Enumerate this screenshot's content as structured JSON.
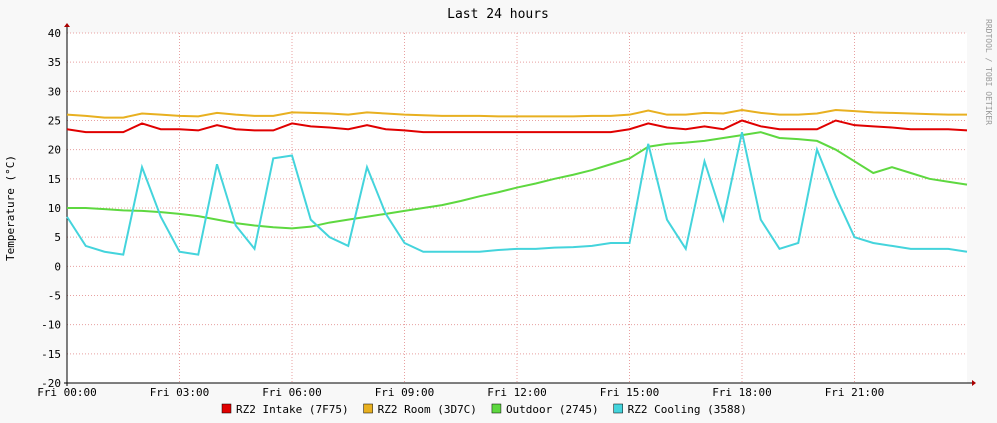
{
  "chart_data": {
    "type": "line",
    "title": "Last 24 hours",
    "y_label": "Temperature (°C)",
    "watermark": "RRDTOOL / TOBI OETIKER",
    "x": [
      0,
      0.5,
      1,
      1.5,
      2,
      2.5,
      3,
      3.5,
      4,
      4.5,
      5,
      5.5,
      6,
      6.5,
      7,
      7.5,
      8,
      8.5,
      9,
      9.5,
      10,
      10.5,
      11,
      11.5,
      12,
      12.5,
      13,
      13.5,
      14,
      14.5,
      15,
      15.5,
      16,
      16.5,
      17,
      17.5,
      18,
      18.5,
      19,
      19.5,
      20,
      20.5,
      21,
      21.5,
      22,
      22.5,
      23,
      23.5,
      24
    ],
    "xlim": [
      0,
      24
    ],
    "xticks": [
      {
        "value": 0,
        "label": "Fri 00:00"
      },
      {
        "value": 3,
        "label": "Fri 03:00"
      },
      {
        "value": 6,
        "label": "Fri 06:00"
      },
      {
        "value": 9,
        "label": "Fri 09:00"
      },
      {
        "value": 12,
        "label": "Fri 12:00"
      },
      {
        "value": 15,
        "label": "Fri 15:00"
      },
      {
        "value": 18,
        "label": "Fri 18:00"
      },
      {
        "value": 21,
        "label": "Fri 21:00"
      }
    ],
    "ylim": [
      -20,
      40
    ],
    "yticks": [
      -20,
      -15,
      -10,
      -5,
      0,
      5,
      10,
      15,
      20,
      25,
      30,
      35,
      40
    ],
    "grid": true,
    "series": [
      {
        "name": "RZ2 Intake (7F75)",
        "color": "#e00000",
        "values": [
          23.5,
          23,
          23,
          23,
          24.5,
          23.5,
          23.5,
          23.3,
          24.2,
          23.5,
          23.3,
          23.3,
          24.5,
          24,
          23.8,
          23.5,
          24.2,
          23.5,
          23.3,
          23,
          23,
          23,
          23,
          23,
          23,
          23,
          23,
          23,
          23,
          23,
          23.5,
          24.5,
          23.8,
          23.5,
          24,
          23.5,
          25,
          24,
          23.5,
          23.5,
          23.5,
          25,
          24.2,
          24,
          23.8,
          23.5,
          23.5,
          23.5,
          23.3
        ]
      },
      {
        "name": "RZ2 Room (3D7C)",
        "color": "#e8b020",
        "values": [
          26,
          25.8,
          25.5,
          25.5,
          26.2,
          26,
          25.8,
          25.7,
          26.3,
          26,
          25.8,
          25.8,
          26.4,
          26.3,
          26.2,
          26,
          26.4,
          26.2,
          26,
          25.9,
          25.8,
          25.8,
          25.8,
          25.7,
          25.7,
          25.7,
          25.7,
          25.7,
          25.8,
          25.8,
          26,
          26.7,
          26,
          26,
          26.3,
          26.2,
          26.8,
          26.3,
          26,
          26,
          26.2,
          26.8,
          26.6,
          26.4,
          26.3,
          26.2,
          26.1,
          26,
          26
        ]
      },
      {
        "name": "Outdoor (2745)",
        "color": "#5ed840",
        "values": [
          10,
          10,
          9.8,
          9.6,
          9.5,
          9.3,
          9,
          8.6,
          8,
          7.4,
          7,
          6.7,
          6.5,
          6.8,
          7.5,
          8,
          8.5,
          9,
          9.5,
          10,
          10.5,
          11.2,
          12,
          12.7,
          13.5,
          14.2,
          15,
          15.7,
          16.5,
          17.5,
          18.5,
          20.5,
          21,
          21.2,
          21.5,
          22,
          22.5,
          23,
          22,
          21.8,
          21.5,
          20,
          18,
          16,
          17,
          16,
          15,
          14.5,
          14
        ]
      },
      {
        "name": "RZ2 Cooling (3588)",
        "color": "#44d4dc",
        "values": [
          8.5,
          3.5,
          2.5,
          2,
          17,
          8.5,
          2.5,
          2,
          17.5,
          7,
          3,
          18.5,
          19,
          8,
          5,
          3.5,
          17,
          9,
          4,
          2.5,
          2.5,
          2.5,
          2.5,
          2.8,
          3,
          3,
          3.2,
          3.3,
          3.5,
          4,
          4,
          21,
          8,
          3,
          18,
          8,
          23,
          8,
          3,
          4,
          20,
          12,
          5,
          4,
          3.5,
          3,
          3,
          3,
          2.5
        ]
      }
    ]
  }
}
